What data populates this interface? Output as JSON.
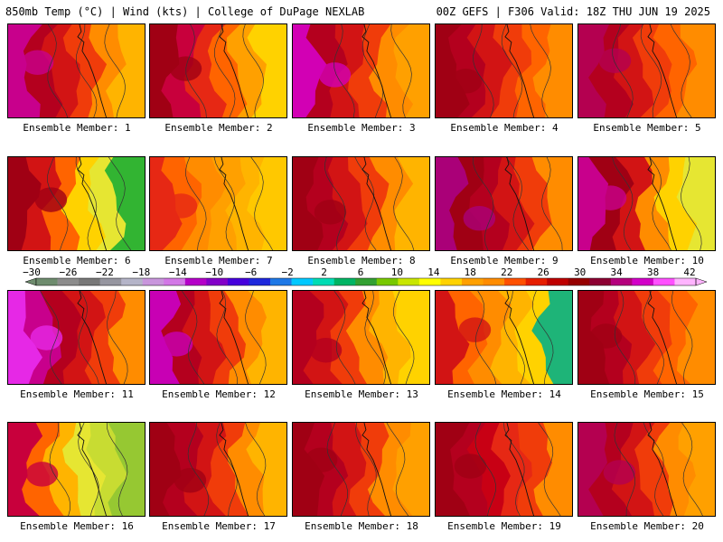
{
  "header": {
    "left": "850mb Temp (°C) | Wind (kts) | College of DuPage NEXLAB",
    "right": "00Z GEFS | F306 Valid: 18Z THU JUN 19 2025"
  },
  "members": [
    {
      "label": "Ensemble Member: 1",
      "colors": [
        "#c8008c",
        "#b4001e",
        "#d21414",
        "#f03c0a",
        "#ff8c00",
        "#ffb400"
      ]
    },
    {
      "label": "Ensemble Member: 2",
      "colors": [
        "#a00014",
        "#c8003c",
        "#e62814",
        "#ff6400",
        "#ffa000",
        "#ffd200"
      ]
    },
    {
      "label": "Ensemble Member: 3",
      "colors": [
        "#d200b4",
        "#b4001e",
        "#d21414",
        "#f03c0a",
        "#ff8c00",
        "#ffa000"
      ]
    },
    {
      "label": "Ensemble Member: 4",
      "colors": [
        "#a00014",
        "#b4001e",
        "#d21414",
        "#f03c0a",
        "#ff6400",
        "#ff8c00"
      ]
    },
    {
      "label": "Ensemble Member: 5",
      "colors": [
        "#b40050",
        "#b4001e",
        "#d21414",
        "#f03c0a",
        "#ff6400",
        "#ff8c00"
      ]
    },
    {
      "label": "Ensemble Member: 6",
      "colors": [
        "#a00014",
        "#d21414",
        "#ff6400",
        "#ffd200",
        "#e6e632",
        "#32b432"
      ]
    },
    {
      "label": "Ensemble Member: 7",
      "colors": [
        "#e62814",
        "#ff6400",
        "#ff8c00",
        "#ffa000",
        "#ffb400",
        "#ffc800"
      ]
    },
    {
      "label": "Ensemble Member: 8",
      "colors": [
        "#a00014",
        "#b4001e",
        "#d21414",
        "#f03c0a",
        "#ff8c00",
        "#ffb400"
      ]
    },
    {
      "label": "Ensemble Member: 9",
      "colors": [
        "#aa0078",
        "#a00014",
        "#b4001e",
        "#d21414",
        "#f03c0a",
        "#ff8c00"
      ]
    },
    {
      "label": "Ensemble Member: 10",
      "colors": [
        "#c8008c",
        "#a00014",
        "#d21414",
        "#ff8c00",
        "#ffd200",
        "#e6e632"
      ]
    },
    {
      "label": "Ensemble Member: 11",
      "colors": [
        "#e628e6",
        "#c8008c",
        "#b4001e",
        "#d21414",
        "#f03c0a",
        "#ff8c00"
      ]
    },
    {
      "label": "Ensemble Member: 12",
      "colors": [
        "#c800b4",
        "#b4001e",
        "#d21414",
        "#f03c0a",
        "#ff8c00",
        "#ffb400"
      ]
    },
    {
      "label": "Ensemble Member: 13",
      "colors": [
        "#b4001e",
        "#d21414",
        "#f03c0a",
        "#ff8c00",
        "#ffb400",
        "#ffd200"
      ]
    },
    {
      "label": "Ensemble Member: 14",
      "colors": [
        "#d21414",
        "#ff6400",
        "#ff8c00",
        "#ffb400",
        "#ffd200",
        "#1eb478"
      ]
    },
    {
      "label": "Ensemble Member: 15",
      "colors": [
        "#a00014",
        "#b4001e",
        "#d21414",
        "#f03c0a",
        "#ff6400",
        "#ff8c00"
      ]
    },
    {
      "label": "Ensemble Member: 16",
      "colors": [
        "#c8003c",
        "#ff6400",
        "#ffb400",
        "#e6e632",
        "#c8dc32",
        "#96c832"
      ]
    },
    {
      "label": "Ensemble Member: 17",
      "colors": [
        "#a00014",
        "#b4001e",
        "#d21414",
        "#f03c0a",
        "#ff8c00",
        "#ffb400"
      ]
    },
    {
      "label": "Ensemble Member: 18",
      "colors": [
        "#a00014",
        "#b4001e",
        "#d21414",
        "#f03c0a",
        "#ff8c00",
        "#ffa000"
      ]
    },
    {
      "label": "Ensemble Member: 19",
      "colors": [
        "#a00014",
        "#b4001e",
        "#c80014",
        "#e62814",
        "#f03c0a",
        "#ff8c00"
      ]
    },
    {
      "label": "Ensemble Member: 20",
      "colors": [
        "#b40050",
        "#b4001e",
        "#d21414",
        "#f03c0a",
        "#ff8c00",
        "#ffa000"
      ]
    }
  ],
  "colorbar": {
    "ticks": [
      "-30",
      "-26",
      "-22",
      "-18",
      "-14",
      "-10",
      "-6",
      "-2",
      "2",
      "6",
      "10",
      "14",
      "18",
      "22",
      "26",
      "30",
      "34",
      "38",
      "42"
    ],
    "colors": [
      "#6e8c6e",
      "#8c8c8c",
      "#787878",
      "#9696a0",
      "#b4b4c8",
      "#c896dc",
      "#d278e6",
      "#b400c8",
      "#8200c8",
      "#4600dc",
      "#1e28dc",
      "#1e78e6",
      "#00c8ff",
      "#00dcb4",
      "#00b464",
      "#32a032",
      "#78c800",
      "#c8e600",
      "#ffff00",
      "#ffd200",
      "#ffa000",
      "#ff8c00",
      "#ff5000",
      "#e61e00",
      "#be0000",
      "#960000",
      "#8c0032",
      "#b4007d",
      "#d200c8",
      "#ff50ff",
      "#ffb4ff"
    ]
  }
}
